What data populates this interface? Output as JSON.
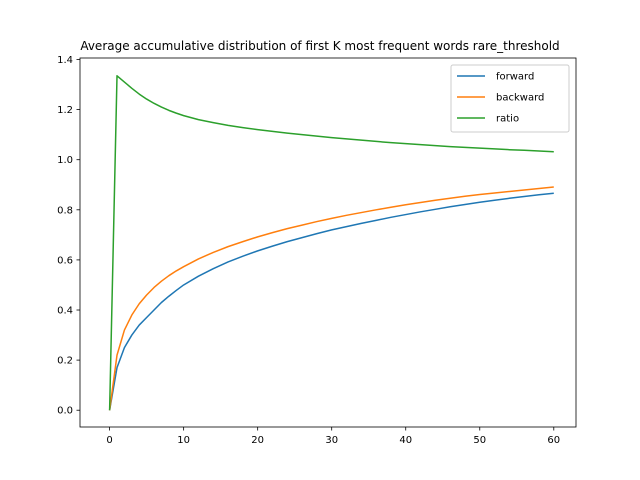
{
  "chart_data": {
    "type": "line",
    "title": "Average accumulative distribution of first K most frequent words rare_threshold",
    "xlabel": "",
    "ylabel": "",
    "xlim": [
      -4,
      63
    ],
    "ylim": [
      -0.067,
      1.406
    ],
    "xticks": [
      0,
      10,
      20,
      30,
      40,
      50,
      60
    ],
    "yticks": [
      0.0,
      0.2,
      0.4,
      0.6,
      0.8,
      1.0,
      1.2,
      1.4
    ],
    "ytick_labels": [
      "0.0",
      "0.2",
      "0.4",
      "0.6",
      "0.8",
      "1.0",
      "1.2",
      "1.4"
    ],
    "grid": false,
    "legend_position": "upper right",
    "x": [
      0,
      1,
      2,
      3,
      4,
      5,
      6,
      7,
      8,
      9,
      10,
      12,
      14,
      16,
      18,
      20,
      22,
      24,
      26,
      28,
      30,
      32,
      34,
      36,
      38,
      40,
      42,
      44,
      46,
      48,
      50,
      52,
      54,
      56,
      58,
      60
    ],
    "series": [
      {
        "name": "forward",
        "color": "#1f77b4",
        "values": [
          0.0,
          0.17,
          0.25,
          0.3,
          0.34,
          0.37,
          0.4,
          0.43,
          0.455,
          0.478,
          0.5,
          0.535,
          0.565,
          0.592,
          0.615,
          0.636,
          0.655,
          0.673,
          0.689,
          0.705,
          0.72,
          0.733,
          0.746,
          0.758,
          0.77,
          0.781,
          0.792,
          0.802,
          0.812,
          0.821,
          0.83,
          0.838,
          0.846,
          0.853,
          0.86,
          0.866
        ]
      },
      {
        "name": "backward",
        "color": "#ff7f0e",
        "values": [
          0.0,
          0.22,
          0.32,
          0.38,
          0.425,
          0.46,
          0.49,
          0.515,
          0.537,
          0.556,
          0.573,
          0.604,
          0.63,
          0.653,
          0.673,
          0.692,
          0.709,
          0.725,
          0.739,
          0.753,
          0.766,
          0.778,
          0.789,
          0.8,
          0.81,
          0.82,
          0.829,
          0.838,
          0.846,
          0.854,
          0.861,
          0.867,
          0.873,
          0.879,
          0.885,
          0.891
        ]
      },
      {
        "name": "ratio",
        "color": "#2ca02c",
        "values": [
          0.0,
          1.335,
          1.31,
          1.285,
          1.262,
          1.242,
          1.225,
          1.21,
          1.197,
          1.186,
          1.176,
          1.16,
          1.148,
          1.137,
          1.128,
          1.12,
          1.113,
          1.106,
          1.1,
          1.094,
          1.088,
          1.083,
          1.078,
          1.073,
          1.068,
          1.064,
          1.06,
          1.056,
          1.052,
          1.049,
          1.046,
          1.043,
          1.04,
          1.038,
          1.035,
          1.032
        ]
      }
    ]
  }
}
